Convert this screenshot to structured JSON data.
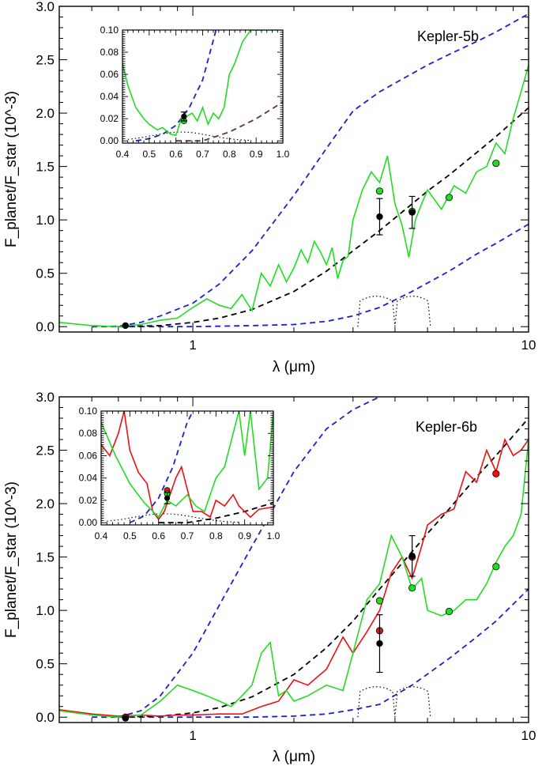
{
  "chart_data": [
    {
      "type": "line",
      "label": "Kepler-5b",
      "xlabel": "λ (μm)",
      "ylabel": "F_planet/F_star (10^-3)",
      "xscale": "log",
      "xlim": [
        0.4,
        10
      ],
      "ylim": [
        -0.05,
        3.0
      ],
      "x_tick_labels": [
        "1",
        "10"
      ],
      "y_tick_labels": [
        "0.0",
        "0.5",
        "1.0",
        "1.5",
        "2.0",
        "2.5",
        "3.0"
      ],
      "series": [
        {
          "name": "blackbody upper",
          "style": "dashed",
          "color": "#1a22cc",
          "x": [
            0.5,
            0.6,
            0.7,
            0.8,
            1.0,
            1.2,
            1.5,
            2.0,
            2.5,
            3.0,
            3.6,
            4.5,
            5.0,
            5.8,
            7.0,
            8.0,
            10.0
          ],
          "y": [
            0.0,
            0.005,
            0.04,
            0.1,
            0.22,
            0.4,
            0.71,
            1.23,
            1.67,
            2.02,
            2.2,
            2.37,
            2.45,
            2.55,
            2.67,
            2.76,
            2.93
          ]
        },
        {
          "name": "blackbody lower",
          "style": "dashed",
          "color": "#1a22cc",
          "x": [
            0.5,
            0.7,
            1.0,
            1.5,
            2.0,
            2.5,
            3.0,
            3.6,
            4.5,
            5.8,
            7.0,
            8.0,
            10.0
          ],
          "y": [
            0.0,
            0.0,
            0.0,
            0.01,
            0.02,
            0.05,
            0.1,
            0.18,
            0.33,
            0.52,
            0.68,
            0.78,
            0.96
          ]
        },
        {
          "name": "model",
          "style": "dashed",
          "color": "#000000",
          "x": [
            0.6,
            0.8,
            1.0,
            1.2,
            1.5,
            2.0,
            2.5,
            3.0,
            3.6,
            4.5,
            5.0,
            5.8,
            7.0,
            8.0,
            10.0
          ],
          "y": [
            0.0,
            0.01,
            0.04,
            0.08,
            0.16,
            0.33,
            0.52,
            0.71,
            0.9,
            1.15,
            1.27,
            1.42,
            1.63,
            1.78,
            2.05
          ]
        },
        {
          "name": "spectrum",
          "style": "solid",
          "color": "#22dd22",
          "x": [
            0.4,
            0.5,
            0.6,
            0.7,
            0.8,
            0.9,
            1.0,
            1.1,
            1.2,
            1.3,
            1.4,
            1.5,
            1.6,
            1.7,
            1.8,
            1.9,
            2.0,
            2.1,
            2.2,
            2.3,
            2.4,
            2.5,
            2.6,
            2.7,
            2.8,
            2.9,
            3.0,
            3.2,
            3.4,
            3.6,
            3.8,
            4.0,
            4.2,
            4.4,
            4.6,
            4.8,
            5.0,
            5.5,
            6.0,
            6.5,
            7.0,
            7.5,
            8.0,
            8.5,
            9.0,
            9.5,
            10.0
          ],
          "y": [
            0.04,
            0.01,
            0.0,
            0.02,
            0.06,
            0.08,
            0.18,
            0.26,
            0.2,
            0.17,
            0.3,
            0.15,
            0.5,
            0.38,
            0.58,
            0.42,
            0.55,
            0.72,
            0.6,
            0.8,
            0.7,
            0.58,
            0.74,
            0.45,
            0.62,
            0.66,
            1.0,
            1.28,
            1.45,
            1.35,
            1.6,
            1.15,
            0.95,
            0.65,
            1.0,
            1.15,
            1.28,
            1.1,
            1.32,
            1.25,
            1.45,
            1.5,
            1.72,
            1.62,
            1.95,
            2.2,
            2.45
          ]
        },
        {
          "name": "band-integrated model",
          "style": "points",
          "color": "#22dd22",
          "x": [
            3.6,
            4.5,
            5.8,
            8.0
          ],
          "y": [
            1.27,
            1.08,
            1.21,
            1.53
          ]
        },
        {
          "name": "observed",
          "style": "points-errorbar",
          "color": "#000000",
          "x": [
            0.63,
            3.6,
            4.5
          ],
          "y": [
            0.01,
            1.03,
            1.07
          ],
          "yerr": [
            0.01,
            0.17,
            0.15
          ]
        }
      ],
      "inset": {
        "xlim": [
          0.4,
          1.0
        ],
        "ylim": [
          -0.002,
          0.1
        ],
        "x_tick_labels": [
          "0.4",
          "0.5",
          "0.6",
          "0.7",
          "0.8",
          "0.9",
          "1.0"
        ],
        "y_tick_labels": [
          "0.00",
          "0.02",
          "0.04",
          "0.06",
          "0.08",
          "0.10"
        ],
        "series": [
          {
            "name": "blackbody upper",
            "style": "dashed",
            "color": "#1a22cc",
            "x": [
              0.45,
              0.5,
              0.55,
              0.6,
              0.65,
              0.7,
              0.75
            ],
            "y": [
              0.0,
              0.002,
              0.006,
              0.014,
              0.03,
              0.055,
              0.1
            ]
          },
          {
            "name": "model",
            "style": "dashed",
            "color": "#5a3a2a",
            "x": [
              0.6,
              0.7,
              0.8,
              0.9,
              1.0
            ],
            "y": [
              0.0,
              0.0,
              0.008,
              0.02,
              0.035
            ]
          },
          {
            "name": "spectrum",
            "style": "solid",
            "color": "#22dd22",
            "x": [
              0.4,
              0.42,
              0.45,
              0.48,
              0.5,
              0.53,
              0.55,
              0.58,
              0.6,
              0.62,
              0.64,
              0.66,
              0.68,
              0.7,
              0.72,
              0.74,
              0.76,
              0.78,
              0.8,
              0.82,
              0.85,
              0.88,
              0.9,
              0.95,
              1.0
            ],
            "y": [
              0.07,
              0.05,
              0.03,
              0.02,
              0.015,
              0.01,
              0.012,
              0.006,
              0.005,
              0.02,
              0.022,
              0.025,
              0.018,
              0.03,
              0.015,
              0.025,
              0.02,
              0.03,
              0.06,
              0.07,
              0.09,
              0.1,
              0.1,
              0.1,
              0.1
            ]
          },
          {
            "name": "model points",
            "style": "points",
            "color": "#22dd22",
            "x": [
              0.63
            ],
            "y": [
              0.018
            ]
          },
          {
            "name": "observed",
            "style": "points-errorbar",
            "color": "#000000",
            "x": [
              0.63
            ],
            "y": [
              0.022
            ],
            "yerr": [
              0.004
            ]
          }
        ]
      }
    },
    {
      "type": "line",
      "label": "Kepler-6b",
      "xlabel": "λ (μm)",
      "ylabel": "F_planet/F_star (10^-3)",
      "xscale": "log",
      "xlim": [
        0.4,
        10
      ],
      "ylim": [
        -0.05,
        3.0
      ],
      "x_tick_labels": [
        "1",
        "10"
      ],
      "y_tick_labels": [
        "0.0",
        "0.5",
        "1.0",
        "1.5",
        "2.0",
        "2.5",
        "3.0"
      ],
      "series": [
        {
          "name": "blackbody upper",
          "style": "dashed",
          "color": "#1a22cc",
          "x": [
            0.6,
            0.7,
            0.8,
            1.0,
            1.2,
            1.5,
            2.0,
            2.5,
            3.0,
            3.6,
            4.0
          ],
          "y": [
            0.0,
            0.06,
            0.2,
            0.6,
            1.05,
            1.6,
            2.3,
            2.7,
            2.88,
            3.0,
            3.1
          ]
        },
        {
          "name": "blackbody lower",
          "style": "dashed",
          "color": "#1a22cc",
          "x": [
            0.5,
            1.0,
            1.5,
            2.0,
            2.5,
            3.0,
            3.6,
            4.5,
            5.8,
            7.0,
            8.0,
            10.0
          ],
          "y": [
            0.0,
            0.0,
            0.0,
            0.01,
            0.03,
            0.07,
            0.12,
            0.3,
            0.55,
            0.75,
            0.9,
            1.2
          ]
        },
        {
          "name": "model",
          "style": "dashed",
          "color": "#000000",
          "x": [
            0.6,
            0.8,
            1.0,
            1.2,
            1.5,
            2.0,
            2.5,
            3.0,
            3.6,
            4.5,
            5.0,
            5.8,
            7.0,
            8.0,
            10.0
          ],
          "y": [
            0.0,
            0.01,
            0.04,
            0.09,
            0.19,
            0.4,
            0.65,
            0.9,
            1.2,
            1.55,
            1.72,
            1.95,
            2.25,
            2.45,
            2.8
          ]
        },
        {
          "name": "spectrum (red)",
          "style": "solid",
          "color": "#ee1111",
          "x": [
            0.4,
            0.5,
            0.6,
            0.7,
            0.8,
            0.9,
            1.0,
            1.2,
            1.4,
            1.6,
            1.8,
            2.0,
            2.2,
            2.5,
            2.8,
            3.0,
            3.3,
            3.6,
            3.9,
            4.2,
            4.5,
            4.8,
            5.0,
            5.5,
            6.0,
            6.5,
            7.0,
            7.5,
            8.0,
            8.5,
            9.0,
            9.5,
            10.0
          ],
          "y": [
            0.07,
            0.03,
            0.01,
            0.02,
            0.01,
            0.02,
            0.02,
            0.03,
            0.03,
            0.1,
            0.15,
            0.35,
            0.3,
            0.45,
            0.75,
            0.6,
            0.8,
            1.0,
            1.35,
            1.5,
            1.3,
            1.6,
            1.8,
            1.9,
            1.95,
            2.3,
            2.2,
            2.5,
            2.3,
            2.6,
            2.45,
            2.5,
            2.6
          ]
        },
        {
          "name": "spectrum (green)",
          "style": "solid",
          "color": "#22dd22",
          "x": [
            0.4,
            0.5,
            0.6,
            0.7,
            0.8,
            0.9,
            1.0,
            1.1,
            1.2,
            1.3,
            1.4,
            1.5,
            1.6,
            1.7,
            1.8,
            1.9,
            2.0,
            2.2,
            2.5,
            2.8,
            3.0,
            3.3,
            3.6,
            3.9,
            4.2,
            4.5,
            4.8,
            5.0,
            5.5,
            6.0,
            6.5,
            7.0,
            7.5,
            8.0,
            8.5,
            9.0,
            9.5,
            10.0
          ],
          "y": [
            0.06,
            0.02,
            0.0,
            0.02,
            0.15,
            0.3,
            0.25,
            0.2,
            0.15,
            0.1,
            0.2,
            0.3,
            0.6,
            0.7,
            0.2,
            0.25,
            0.15,
            0.2,
            0.3,
            0.25,
            0.6,
            1.1,
            1.25,
            1.7,
            1.5,
            1.2,
            1.3,
            1.0,
            0.95,
            1.0,
            1.1,
            1.1,
            1.25,
            1.45,
            1.6,
            1.7,
            1.9,
            2.6
          ]
        },
        {
          "name": "band-integrated model (red)",
          "style": "points",
          "color": "#ee1111",
          "x": [
            0.63,
            3.6,
            4.5,
            8.0
          ],
          "y": [
            0.0,
            0.81,
            1.5,
            2.28
          ]
        },
        {
          "name": "band-integrated model (green)",
          "style": "points",
          "color": "#22dd22",
          "x": [
            3.6,
            4.5,
            5.8,
            8.0
          ],
          "y": [
            1.09,
            1.21,
            0.99,
            1.41
          ]
        },
        {
          "name": "observed",
          "style": "points-errorbar",
          "color": "#000000",
          "x": [
            0.63,
            3.6,
            4.5
          ],
          "y": [
            -0.01,
            0.69,
            1.51
          ],
          "yerr": [
            0.01,
            0.27,
            0.19
          ]
        }
      ],
      "inset": {
        "xlim": [
          0.4,
          1.0
        ],
        "ylim": [
          -0.002,
          0.1
        ],
        "x_tick_labels": [
          "0.4",
          "0.5",
          "0.6",
          "0.7",
          "0.8",
          "0.9",
          "1.0"
        ],
        "y_tick_labels": [
          "0.00",
          "0.02",
          "0.04",
          "0.06",
          "0.08",
          "0.10"
        ],
        "series": [
          {
            "name": "blackbody upper",
            "style": "dashed",
            "color": "#1a22cc",
            "x": [
              0.5,
              0.55,
              0.6,
              0.65,
              0.7,
              0.72
            ],
            "y": [
              0.0,
              0.006,
              0.022,
              0.05,
              0.09,
              0.1
            ]
          },
          {
            "name": "model",
            "style": "dashed",
            "color": "#000000",
            "x": [
              0.6,
              0.7,
              0.8,
              0.9,
              1.0
            ],
            "y": [
              0.0,
              0.0,
              0.004,
              0.01,
              0.018
            ]
          },
          {
            "name": "spectrum (red)",
            "style": "solid",
            "color": "#ee1111",
            "x": [
              0.4,
              0.43,
              0.46,
              0.48,
              0.5,
              0.53,
              0.56,
              0.58,
              0.6,
              0.62,
              0.64,
              0.66,
              0.68,
              0.7,
              0.72,
              0.75,
              0.78,
              0.8,
              0.83,
              0.86,
              0.88,
              0.9,
              0.92,
              0.95,
              1.0
            ],
            "y": [
              0.07,
              0.06,
              0.08,
              0.1,
              0.065,
              0.045,
              0.035,
              0.01,
              0.003,
              0.01,
              0.025,
              0.04,
              0.05,
              0.03,
              0.01,
              0.01,
              0.005,
              0.02,
              0.015,
              0.025,
              0.015,
              0.01,
              0.005,
              0.012,
              0.014
            ]
          },
          {
            "name": "spectrum (green)",
            "style": "solid",
            "color": "#22dd22",
            "x": [
              0.4,
              0.45,
              0.5,
              0.55,
              0.6,
              0.63,
              0.66,
              0.7,
              0.73,
              0.76,
              0.8,
              0.83,
              0.86,
              0.88,
              0.9,
              0.92,
              0.95,
              0.98,
              1.0
            ],
            "y": [
              0.09,
              0.06,
              0.035,
              0.018,
              0.005,
              0.02,
              0.015,
              0.025,
              0.015,
              0.01,
              0.04,
              0.05,
              0.08,
              0.1,
              0.06,
              0.1,
              0.03,
              0.04,
              0.1
            ]
          },
          {
            "name": "model points (red)",
            "style": "points",
            "color": "#ee1111",
            "x": [
              0.63
            ],
            "y": [
              0.029
            ]
          },
          {
            "name": "model points (green)",
            "style": "points",
            "color": "#22dd22",
            "x": [
              0.63
            ],
            "y": [
              0.026
            ]
          },
          {
            "name": "observed",
            "style": "points-errorbar",
            "color": "#000000",
            "x": [
              0.63
            ],
            "y": [
              0.022
            ],
            "yerr": [
              0.005
            ]
          }
        ]
      }
    }
  ]
}
